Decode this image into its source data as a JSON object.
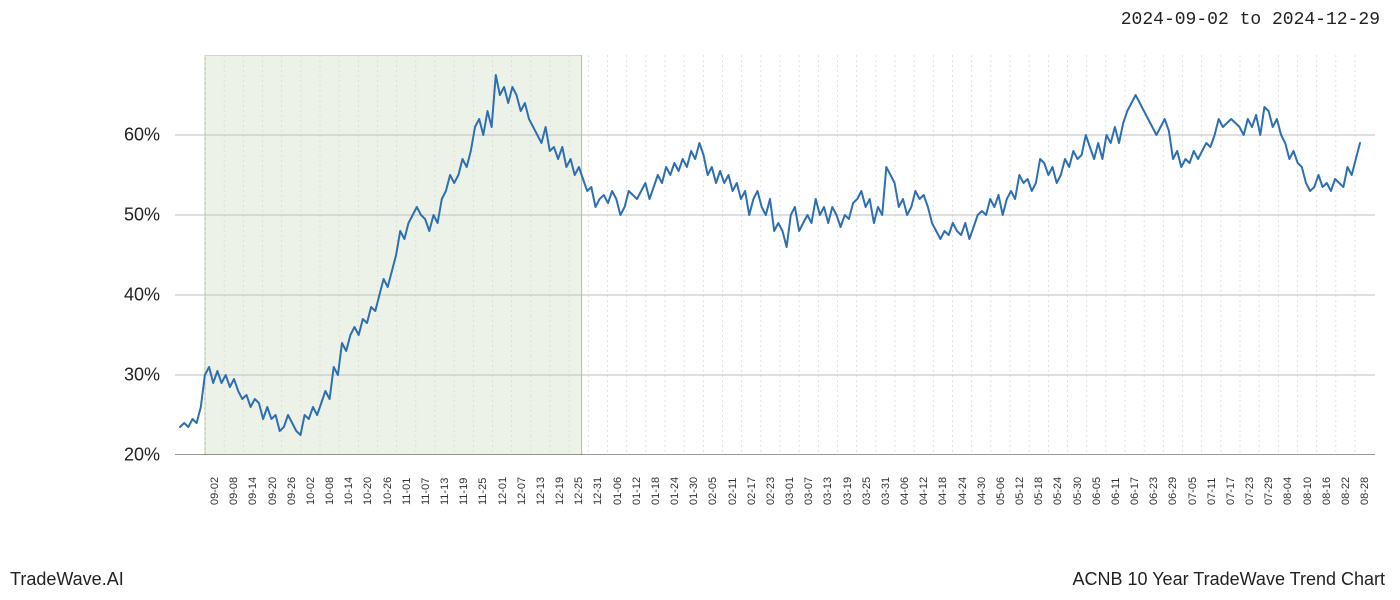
{
  "header": {
    "date_range": "2024-09-02 to 2024-12-29"
  },
  "footer": {
    "brand": "TradeWave.AI",
    "chart_title": "ACNB 10 Year TradeWave Trend Chart"
  },
  "chart": {
    "type": "line",
    "background_color": "#ffffff",
    "highlight_fill": "#dce8d4",
    "highlight_border": "#a8c49a",
    "highlight_opacity": 0.55,
    "line_color": "#2e6fb2",
    "line_width": 2,
    "grid_color_major": "#bfbfbf",
    "grid_color_minor": "#d9d9d9",
    "grid_dash_minor": "2,3",
    "axis_color": "#333333",
    "tick_font_size": 11,
    "y_label_font_size": 18,
    "plot_border_bottom": true,
    "highlight_range_x": [
      "09-02",
      "12-29"
    ],
    "ylim": [
      20,
      70
    ],
    "ytick_step": 10,
    "yticks": [
      "20%",
      "30%",
      "40%",
      "50%",
      "60%"
    ],
    "xticks": [
      "09-02",
      "09-08",
      "09-14",
      "09-20",
      "09-26",
      "10-02",
      "10-08",
      "10-14",
      "10-20",
      "10-26",
      "11-01",
      "11-07",
      "11-13",
      "11-19",
      "11-25",
      "12-01",
      "12-07",
      "12-13",
      "12-19",
      "12-25",
      "12-31",
      "01-06",
      "01-12",
      "01-18",
      "01-24",
      "01-30",
      "02-05",
      "02-11",
      "02-17",
      "02-23",
      "03-01",
      "03-07",
      "03-13",
      "03-19",
      "03-25",
      "03-31",
      "04-06",
      "04-12",
      "04-18",
      "04-24",
      "04-30",
      "05-06",
      "05-12",
      "05-18",
      "05-24",
      "05-30",
      "06-05",
      "06-11",
      "06-17",
      "06-23",
      "06-29",
      "07-05",
      "07-11",
      "07-17",
      "07-23",
      "07-29",
      "08-04",
      "08-10",
      "08-16",
      "08-22",
      "08-28"
    ],
    "series": [
      23.5,
      24,
      23.5,
      24.5,
      24,
      26,
      30,
      31,
      29,
      30.5,
      29,
      30,
      28.5,
      29.5,
      28,
      27,
      27.5,
      26,
      27,
      26.5,
      24.5,
      26,
      24.5,
      25,
      23,
      23.5,
      25,
      24,
      23,
      22.5,
      25,
      24.5,
      26,
      25,
      26.5,
      28,
      27,
      31,
      30,
      34,
      33,
      35,
      36,
      35,
      37,
      36.5,
      38.5,
      38,
      40,
      42,
      41,
      43,
      45,
      48,
      47,
      49,
      50,
      51,
      50,
      49.5,
      48,
      50,
      49,
      52,
      53,
      55,
      54,
      55,
      57,
      56,
      58,
      61,
      62,
      60,
      63,
      61,
      67.5,
      65,
      66,
      64,
      66,
      65,
      63,
      64,
      62,
      61,
      60,
      59,
      61,
      58,
      58.5,
      57,
      58.5,
      56,
      57,
      55,
      56,
      54.5,
      53,
      53.5,
      51,
      52,
      52.5,
      51.5,
      53,
      52,
      50,
      51,
      53,
      52.5,
      52,
      53,
      54,
      52,
      53.5,
      55,
      54,
      56,
      55,
      56.5,
      55.5,
      57,
      56,
      58,
      57,
      59,
      57.5,
      55,
      56,
      54,
      55.5,
      54,
      55,
      53,
      54,
      52,
      53,
      50,
      52,
      53,
      51,
      50,
      52,
      48,
      49,
      48,
      46,
      50,
      51,
      48,
      49,
      50,
      49,
      52,
      50,
      51,
      49,
      51,
      50,
      48.5,
      50,
      49.5,
      51.5,
      52,
      53,
      51,
      52,
      49,
      51,
      50,
      56,
      55,
      54,
      51,
      52,
      50,
      51,
      53,
      52,
      52.5,
      51,
      49,
      48,
      47,
      48,
      47.5,
      49,
      48,
      47.5,
      49,
      47,
      48.5,
      50,
      50.5,
      50,
      52,
      51,
      52.5,
      50,
      52,
      53,
      52,
      55,
      54,
      54.5,
      53,
      54,
      57,
      56.5,
      55,
      56,
      54,
      55,
      57,
      56,
      58,
      57,
      57.5,
      60,
      58.5,
      57,
      59,
      57,
      60,
      59,
      61,
      59,
      61.5,
      63,
      64,
      65,
      64,
      63,
      62,
      61,
      60,
      61,
      62,
      60.5,
      57,
      58,
      56,
      57,
      56.5,
      58,
      57,
      58,
      59,
      58.5,
      60,
      62,
      61,
      61.5,
      62,
      61.5,
      61,
      60,
      62,
      61,
      62.5,
      60,
      63.5,
      63,
      61,
      62,
      60,
      59,
      57,
      58,
      56.5,
      56,
      54,
      53,
      53.5,
      55,
      53.5,
      54,
      53,
      54.5,
      54,
      53.5,
      56,
      55,
      57,
      59
    ],
    "series_x_count": 260
  }
}
